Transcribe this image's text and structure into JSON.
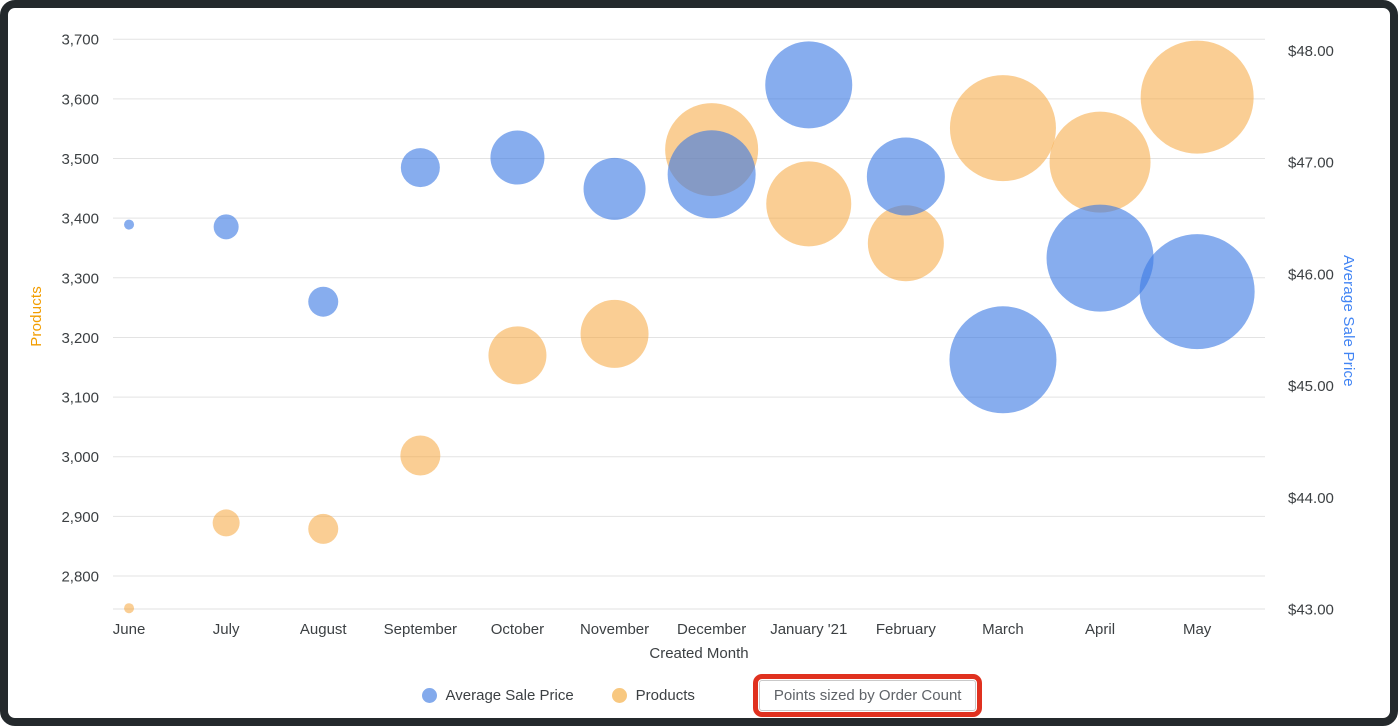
{
  "chart_data": {
    "type": "bubble",
    "title": "",
    "xlabel": "Created Month",
    "x_categories": [
      "June",
      "July",
      "August",
      "September",
      "October",
      "November",
      "December",
      "January '21",
      "February",
      "March",
      "April",
      "May"
    ],
    "left_axis": {
      "title": "Products",
      "color": "#f29d00",
      "tick_labels": [
        "2,800",
        "2,900",
        "3,000",
        "3,100",
        "3,200",
        "3,300",
        "3,400",
        "3,500",
        "3,600",
        "3,700"
      ],
      "tick_values": [
        2800,
        2900,
        3000,
        3100,
        3200,
        3300,
        3400,
        3500,
        3600,
        3700
      ],
      "range": [
        2745,
        3736
      ]
    },
    "right_axis": {
      "title": "Average Sale Price",
      "color": "#4285f4",
      "tick_labels": [
        "$43.00",
        "$44.00",
        "$45.00",
        "$46.00",
        "$47.00",
        "$48.00"
      ],
      "tick_values": [
        43,
        44,
        45,
        46,
        47,
        48
      ],
      "range": [
        43,
        48.3
      ]
    },
    "grid": true,
    "legend_position": "bottom",
    "size_note": "Points sized by Order Count",
    "series": [
      {
        "name": "Average Sale Price",
        "axis": "right",
        "draw_order": 2,
        "color": "rgba(62,122,228,0.62)",
        "legend_color": "#83aaec",
        "values": [
          46.44,
          46.42,
          45.75,
          46.95,
          47.04,
          46.76,
          46.89,
          47.69,
          46.87,
          45.23,
          46.14,
          45.84
        ],
        "radius_px": [
          5,
          12.5,
          15,
          19.5,
          27,
          31,
          44,
          43.5,
          39,
          53.5,
          53.5,
          57.5
        ]
      },
      {
        "name": "Products",
        "axis": "left",
        "draw_order": 1,
        "color": "rgba(245,166,60,0.55)",
        "legend_color": "#f8c880",
        "values": [
          2746,
          2889,
          2879,
          3002,
          3170,
          3206,
          3515,
          3424,
          3358,
          3551,
          3494,
          3603
        ],
        "radius_px": [
          5,
          13.5,
          15,
          20,
          29,
          34,
          46.5,
          42.5,
          38,
          53,
          50.5,
          56.5
        ]
      }
    ]
  },
  "legend": {
    "items": [
      {
        "label": "Average Sale Price"
      },
      {
        "label": "Products"
      }
    ],
    "note": "Points sized by Order Count"
  },
  "annotation": {
    "shape": "red-highlight-box",
    "color": "#e0311f"
  }
}
